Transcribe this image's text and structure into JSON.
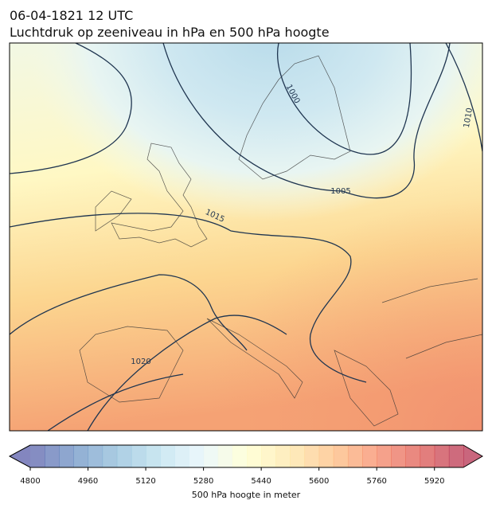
{
  "header": {
    "datetime": "06-04-1821 12 UTC",
    "title": "Luchtdruk op zeeniveau in hPa en 500 hPa hoogte"
  },
  "map": {
    "contour_labels": [
      "1000",
      "1005",
      "1010",
      "1015",
      "1020"
    ]
  },
  "colorbar": {
    "range": [
      4800,
      6000
    ],
    "step": 40,
    "ticks": [
      4800,
      4960,
      5120,
      5280,
      5440,
      5600,
      5760,
      5920
    ],
    "label": "500 hPa hoogte in meter",
    "colors": [
      "#313695",
      "#4575b4",
      "#74add1",
      "#abd9e9",
      "#e0f3f8",
      "#ffffbf",
      "#fee090",
      "#fdae61",
      "#f46d43",
      "#d73027",
      "#a50026"
    ],
    "opacity": 0.6
  }
}
